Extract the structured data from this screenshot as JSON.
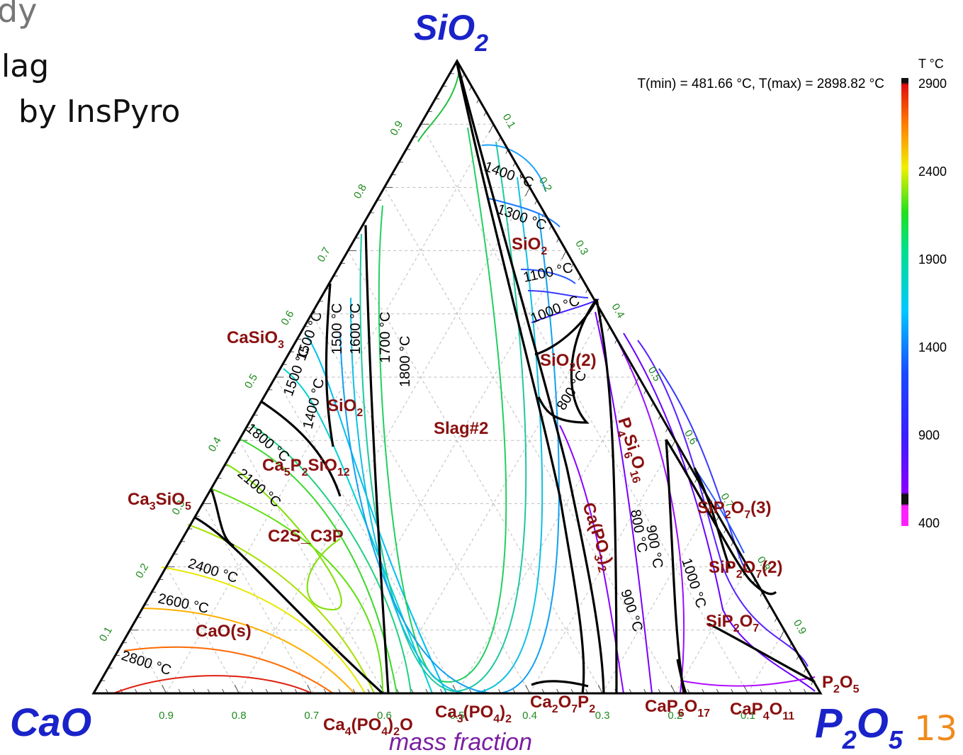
{
  "slide": {
    "title_fragment": "dy",
    "line1": "lag",
    "line2": "by InsPyro",
    "page_number": "13",
    "page_number_color": "#f08a1c"
  },
  "vertices": {
    "top": {
      "base": "SiO",
      "sub": "2"
    },
    "left": {
      "base": "CaO"
    },
    "right": {
      "base": "P",
      "sub1": "2",
      "mid": "O",
      "sub2": "5"
    },
    "color": "#1a23c9"
  },
  "axis": {
    "bottom_label": "mass fraction",
    "bottom_label_color": "#7a1fa0",
    "bottom_ticks": [
      "0.9",
      "0.8",
      "0.7",
      "0.6",
      "0.5",
      "0.4",
      "0.3",
      "0.2",
      "0.1"
    ],
    "left_ticks": [
      "0.1",
      "0.2",
      "0.3",
      "0.4",
      "0.5",
      "0.6",
      "0.7",
      "0.8",
      "0.9"
    ],
    "right_ticks": [
      "0.1",
      "0.2",
      "0.3",
      "0.4",
      "0.5",
      "0.6",
      "0.7",
      "0.8",
      "0.9"
    ],
    "tick_color": "#1f8a1f"
  },
  "trange": "T(min) = 481.66 °C, T(max) = 2898.82 °C",
  "colorbar": {
    "title": "T °C",
    "ticks": [
      "2900",
      "2400",
      "1900",
      "1400",
      "900",
      "400"
    ]
  },
  "phases": [
    {
      "id": "sio2-top",
      "parts": [
        [
          "SiO",
          ""
        ],
        [
          "2",
          "sub"
        ]
      ]
    },
    {
      "id": "sio2-2",
      "parts": [
        [
          "SiO",
          ""
        ],
        [
          "2",
          "sub"
        ],
        [
          "(2)",
          ""
        ]
      ]
    },
    {
      "id": "casio3",
      "parts": [
        [
          "CaSiO",
          ""
        ],
        [
          "3",
          "sub"
        ]
      ]
    },
    {
      "id": "sio2-left",
      "parts": [
        [
          "SiO",
          ""
        ],
        [
          "2",
          "sub"
        ]
      ]
    },
    {
      "id": "slag2",
      "parts": [
        [
          "Slag#2",
          ""
        ]
      ]
    },
    {
      "id": "ca5p2sio12",
      "parts": [
        [
          "Ca",
          ""
        ],
        [
          "5",
          "sub"
        ],
        [
          "P",
          ""
        ],
        [
          "2",
          "sub"
        ],
        [
          "SiO",
          ""
        ],
        [
          "12",
          "sub"
        ]
      ]
    },
    {
      "id": "ca3sio5",
      "parts": [
        [
          "Ca",
          ""
        ],
        [
          "3",
          "sub"
        ],
        [
          "SiO",
          ""
        ],
        [
          "5",
          "sub"
        ]
      ]
    },
    {
      "id": "c2s-c3p",
      "parts": [
        [
          "C2S_C3P",
          ""
        ]
      ]
    },
    {
      "id": "cao-s",
      "parts": [
        [
          "CaO(s)",
          ""
        ]
      ]
    },
    {
      "id": "p4si6o16",
      "parts": [
        [
          "P",
          ""
        ],
        [
          "4",
          "sub"
        ],
        [
          "Si",
          ""
        ],
        [
          "6",
          "sub"
        ],
        [
          "O",
          ""
        ],
        [
          "16",
          "sub"
        ]
      ]
    },
    {
      "id": "capo3-2",
      "parts": [
        [
          "Ca(PO",
          ""
        ],
        [
          "3",
          "sub"
        ],
        [
          ")",
          ""
        ],
        [
          "2",
          "sub"
        ]
      ]
    },
    {
      "id": "sip2o7-3",
      "parts": [
        [
          "SiP",
          ""
        ],
        [
          "2",
          "sub"
        ],
        [
          "O",
          ""
        ],
        [
          "7",
          "sub"
        ],
        [
          "(3)",
          ""
        ]
      ]
    },
    {
      "id": "sip2o7-2",
      "parts": [
        [
          "SiP",
          ""
        ],
        [
          "2",
          "sub"
        ],
        [
          "O",
          ""
        ],
        [
          "7",
          "sub"
        ],
        [
          "(2)",
          ""
        ]
      ]
    },
    {
      "id": "sip2o7",
      "parts": [
        [
          "SiP",
          ""
        ],
        [
          "2",
          "sub"
        ],
        [
          "O",
          ""
        ],
        [
          "7",
          "sub"
        ]
      ]
    },
    {
      "id": "p2o5",
      "parts": [
        [
          "P",
          ""
        ],
        [
          "2",
          "sub"
        ],
        [
          "O",
          ""
        ],
        [
          "5",
          "sub"
        ]
      ]
    },
    {
      "id": "ca4po42o",
      "parts": [
        [
          "Ca",
          ""
        ],
        [
          "4",
          "sub"
        ],
        [
          "(PO",
          ""
        ],
        [
          "4",
          "sub"
        ],
        [
          ")",
          ""
        ],
        [
          "2",
          "sub"
        ],
        [
          "O",
          ""
        ]
      ]
    },
    {
      "id": "ca3po42",
      "parts": [
        [
          "Ca",
          ""
        ],
        [
          "3",
          "sub"
        ],
        [
          "(PO",
          ""
        ],
        [
          "4",
          "sub"
        ],
        [
          ")",
          ""
        ],
        [
          "2",
          "sub"
        ]
      ]
    },
    {
      "id": "ca2o7p2",
      "parts": [
        [
          "Ca",
          ""
        ],
        [
          "2",
          "sub"
        ],
        [
          "O",
          ""
        ],
        [
          "7",
          "sub"
        ],
        [
          "P",
          ""
        ],
        [
          "2",
          "sub"
        ]
      ]
    },
    {
      "id": "cap6o17",
      "parts": [
        [
          "Ca",
          ""
        ],
        [
          "P",
          ""
        ],
        [
          "6",
          "sub"
        ],
        [
          "O",
          ""
        ],
        [
          "17",
          "sub"
        ]
      ]
    },
    {
      "id": "cap4o11",
      "parts": [
        [
          "CaP",
          ""
        ],
        [
          "4",
          "sub"
        ],
        [
          "O",
          ""
        ],
        [
          "11",
          "sub"
        ]
      ]
    }
  ],
  "isotherms": [
    {
      "id": "iso-1400-top",
      "text": "1400 °C"
    },
    {
      "id": "iso-1300",
      "text": "1300 °C"
    },
    {
      "id": "iso-1100",
      "text": "1100 °C"
    },
    {
      "id": "iso-1000-top",
      "text": "1000 °C"
    },
    {
      "id": "iso-800-mid",
      "text": "800 °C"
    },
    {
      "id": "iso-1500-a",
      "text": "1500 °C"
    },
    {
      "id": "iso-1600",
      "text": "1600 °C"
    },
    {
      "id": "iso-1700",
      "text": "1700 °C"
    },
    {
      "id": "iso-1800-a",
      "text": "1800 °C"
    },
    {
      "id": "iso-1500-b",
      "text": "1500 °C"
    },
    {
      "id": "iso-1500-c",
      "text": "1500 °C"
    },
    {
      "id": "iso-1400-left",
      "text": "1400 °C"
    },
    {
      "id": "iso-1800-b",
      "text": "1800 °C"
    },
    {
      "id": "iso-2100",
      "text": "2100 °C"
    },
    {
      "id": "iso-2400",
      "text": "2400 °C"
    },
    {
      "id": "iso-2600",
      "text": "2600 °C"
    },
    {
      "id": "iso-2800",
      "text": "2800 °C"
    },
    {
      "id": "iso-800-r",
      "text": "800 °C"
    },
    {
      "id": "iso-900-r",
      "text": "900 °C"
    },
    {
      "id": "iso-1000-r",
      "text": "1000 °C"
    },
    {
      "id": "iso-900-low",
      "text": "900 °C"
    }
  ]
}
